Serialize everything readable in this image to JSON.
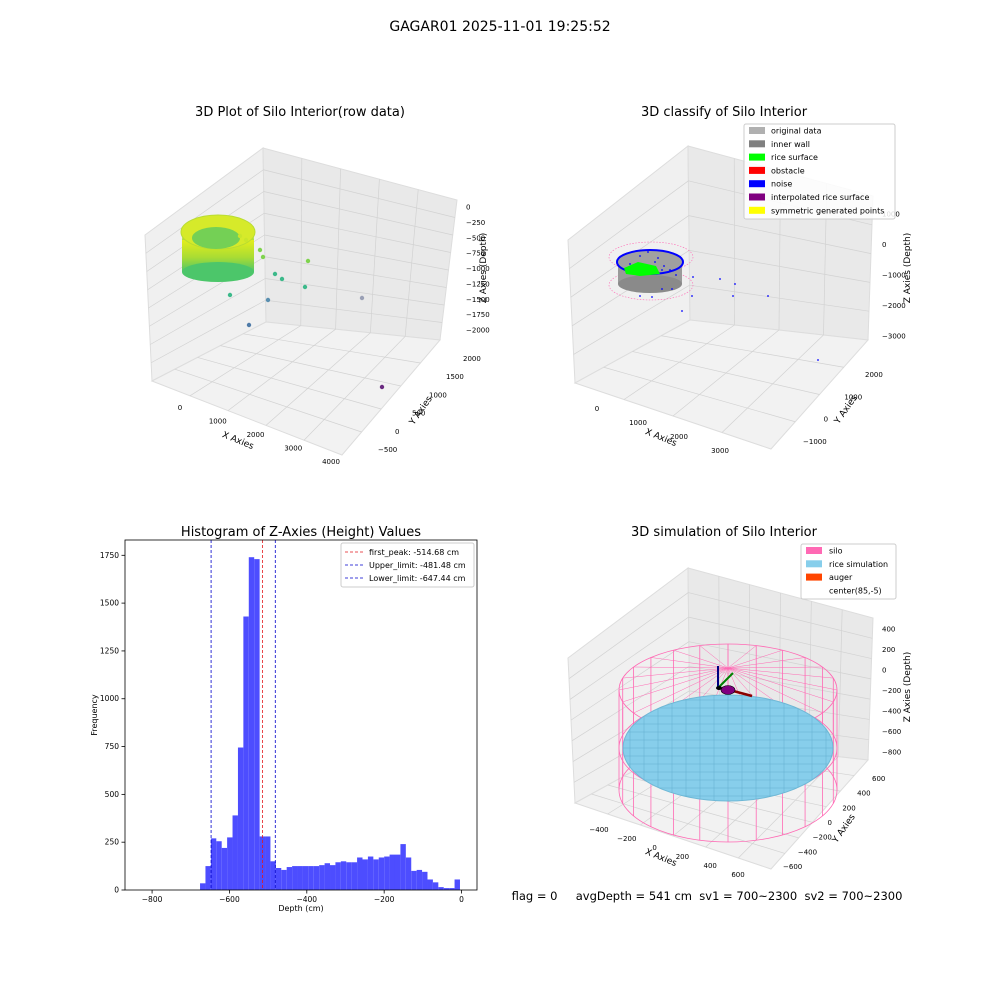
{
  "figure_title": "GAGAR01 2025-11-01 19:25:52",
  "status_line": "flag = 0     avgDepth = 541 cm  sv1 = 700~2300  sv2 = 700~2300",
  "colors": {
    "histogram_bar": "#4d4dff",
    "first_peak_line": "#e41a1c",
    "limit_line": "#0000cc",
    "silo": "#ff69b4",
    "rice_simulation": "#87ceeb",
    "auger": "#ff4500",
    "original_data": "#b0b0b0",
    "inner_wall": "#808080",
    "rice_surface": "#00ff00",
    "obstacle": "#ff0000",
    "noise": "#0000ff",
    "interpolated_rice_surface": "#800080",
    "symmetric_generated_points": "#ffff00"
  },
  "chart_data": [
    {
      "type": "scatter",
      "title": "3D Plot of Silo Interior(row data)",
      "xlabel": "X Axies",
      "ylabel": "Y Axies",
      "zlabel": "Z Axies (Depth)",
      "x_ticks": [
        "0",
        "1000",
        "2000",
        "3000",
        "4000"
      ],
      "y_ticks": [
        "−500",
        "0",
        "500",
        "1000",
        "1500",
        "2000"
      ],
      "z_ticks": [
        "0",
        "−250",
        "−500",
        "−750",
        "−1000",
        "−1250",
        "−1500",
        "−1750",
        "−2000"
      ],
      "xlim": [
        -600,
        4200
      ],
      "ylim": [
        -700,
        2300
      ],
      "zlim": [
        -2200,
        100
      ],
      "colormap": "viridis"
    },
    {
      "type": "scatter",
      "title": "3D classify of Silo Interior",
      "xlabel": "X Axies",
      "ylabel": "Y Axies",
      "zlabel": "Z Axies (Depth)",
      "x_ticks": [
        "0",
        "1000",
        "2000",
        "3000"
      ],
      "y_ticks": [
        "−1000",
        "0",
        "1000",
        "2000"
      ],
      "z_ticks": [
        "1000",
        "0",
        "−1000",
        "−2000",
        "−3000"
      ],
      "xlim": [
        -600,
        3800
      ],
      "ylim": [
        -1500,
        2600
      ],
      "zlim": [
        -3300,
        1200
      ],
      "legend": [
        "original data",
        "inner wall",
        "rice surface",
        "obstacle",
        "noise",
        "interpolated rice surface",
        "symmetric generated points"
      ],
      "legend_position": "top-right"
    },
    {
      "type": "bar",
      "title": "Histogram of Z-Axies (Height) Values",
      "xlabel": "Depth (cm)",
      "ylabel": "Frequency",
      "xlim": [
        -870,
        40
      ],
      "ylim": [
        0,
        1830
      ],
      "x_ticks": [
        -800,
        -600,
        -400,
        -200,
        0
      ],
      "x_tick_labels": [
        "−800",
        "−600",
        "−400",
        "−200",
        "0"
      ],
      "y_ticks": [
        0,
        250,
        500,
        750,
        1000,
        1250,
        1500,
        1750
      ],
      "x": [
        -669,
        -655,
        -641,
        -627,
        -613,
        -599,
        -585,
        -571,
        -557,
        -543,
        -529,
        -515,
        -501,
        -487,
        -473,
        -459,
        -445,
        -431,
        -417,
        -403,
        -389,
        -375,
        -361,
        -347,
        -333,
        -319,
        -305,
        -291,
        -277,
        -263,
        -249,
        -235,
        -221,
        -207,
        -193,
        -179,
        -165,
        -151,
        -137,
        -123,
        -109,
        -95,
        -81,
        -67,
        -53,
        -39,
        -25,
        -11,
        3
      ],
      "values": [
        35,
        125,
        270,
        255,
        220,
        275,
        390,
        745,
        1430,
        1740,
        1730,
        280,
        280,
        150,
        115,
        105,
        120,
        125,
        125,
        125,
        125,
        125,
        130,
        140,
        130,
        145,
        150,
        145,
        145,
        170,
        160,
        175,
        160,
        170,
        175,
        185,
        185,
        240,
        170,
        100,
        105,
        95,
        55,
        40,
        15,
        10,
        10,
        55,
        0
      ],
      "bin_width": 14,
      "vlines": [
        {
          "label": "first_peak: -514.68 cm",
          "x": -514.68,
          "style": "red-dashed"
        },
        {
          "label": "Upper_limit: -481.48 cm",
          "x": -481.48,
          "style": "blue-dashed"
        },
        {
          "label": "Lower_limit: -647.44 cm",
          "x": -647.44,
          "style": "blue-dashed"
        }
      ],
      "legend_position": "top-right"
    },
    {
      "type": "scatter",
      "title": "3D simulation of Silo Interior",
      "xlabel": "X Axies",
      "ylabel": "Y Axies",
      "zlabel": "Z Axies (Depth)",
      "x_ticks": [
        "−400",
        "−200",
        "0",
        "200",
        "400",
        "600"
      ],
      "y_ticks": [
        "−600",
        "−400",
        "−200",
        "0",
        "200",
        "400",
        "600"
      ],
      "z_ticks": [
        "400",
        "200",
        "0",
        "−200",
        "−400",
        "−600",
        "−800"
      ],
      "xlim": [
        -600,
        700
      ],
      "ylim": [
        -700,
        700
      ],
      "zlim": [
        -950,
        500
      ],
      "legend": [
        "silo",
        "rice simulation",
        "auger",
        "center(85,-5)"
      ],
      "legend_position": "top-right"
    }
  ]
}
